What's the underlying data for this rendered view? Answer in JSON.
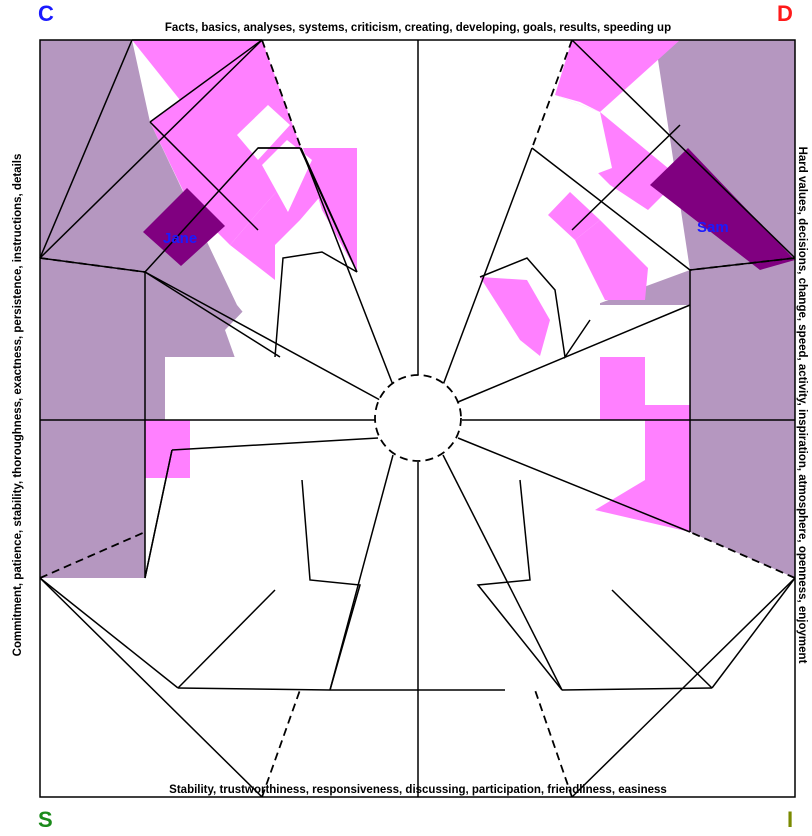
{
  "corners": {
    "top_left": {
      "letter": "C",
      "color": "#1a1aff"
    },
    "top_right": {
      "letter": "D",
      "color": "#ff1a1a"
    },
    "bottom_left": {
      "letter": "S",
      "color": "#1a8a1a"
    },
    "bottom_right": {
      "letter": "I",
      "color": "#7a8a00"
    }
  },
  "edges": {
    "top": "Facts, basics, analyses, systems, criticism, creating, developing, goals, results, speeding up",
    "right": "Hard values, decisions, change, speed, activity, inspiration, atmosphere, openness, enjoyment",
    "bottom": "Stability, trustworthiness, responsiveness, discussing, participation, friendliness, easiness",
    "left": "Commitment, patience, stability, thoroughness, exactness, persistence, instructions, details"
  },
  "people": [
    {
      "name": "Jane",
      "quadrant": "C"
    },
    {
      "name": "Sam",
      "quadrant": "D"
    }
  ],
  "colors": {
    "pink": "#ff80ff",
    "mauve": "#b597c0",
    "dark_purple": "#800080",
    "line": "#000000",
    "name_text": "#1a1aff"
  }
}
